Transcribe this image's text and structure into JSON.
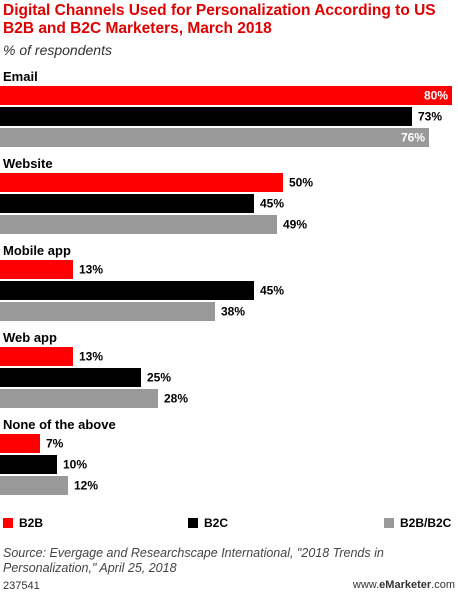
{
  "header": {
    "title": "Digital Channels Used for Personalization According to US B2B and B2C Marketers, March 2018",
    "subtitle": "% of respondents"
  },
  "chart_data": {
    "type": "bar",
    "orientation": "horizontal",
    "categories": [
      "Email",
      "Website",
      "Mobile app",
      "Web app",
      "None of the above"
    ],
    "series": [
      {
        "name": "B2B",
        "color": "#ff0000",
        "values": [
          80,
          50,
          13,
          13,
          7
        ]
      },
      {
        "name": "B2C",
        "color": "#000000",
        "values": [
          73,
          45,
          45,
          25,
          10
        ]
      },
      {
        "name": "B2B/B2C",
        "color": "#999999",
        "values": [
          76,
          49,
          38,
          28,
          12
        ]
      }
    ],
    "value_suffix": "%",
    "xlim": [
      0,
      80
    ],
    "grid": false,
    "legend_position": "bottom"
  },
  "legend": {
    "items": [
      {
        "label": "B2B",
        "color": "#ff0000"
      },
      {
        "label": "B2C",
        "color": "#000000"
      },
      {
        "label": "B2B/B2C",
        "color": "#999999"
      }
    ]
  },
  "footer": {
    "source": "Source: Evergage and Researchscape International, \"2018 Trends in Personalization,\" April 25, 2018",
    "id": "237541",
    "brand_prefix": "www.",
    "brand_name": "eMarketer",
    "brand_suffix": ".com"
  }
}
